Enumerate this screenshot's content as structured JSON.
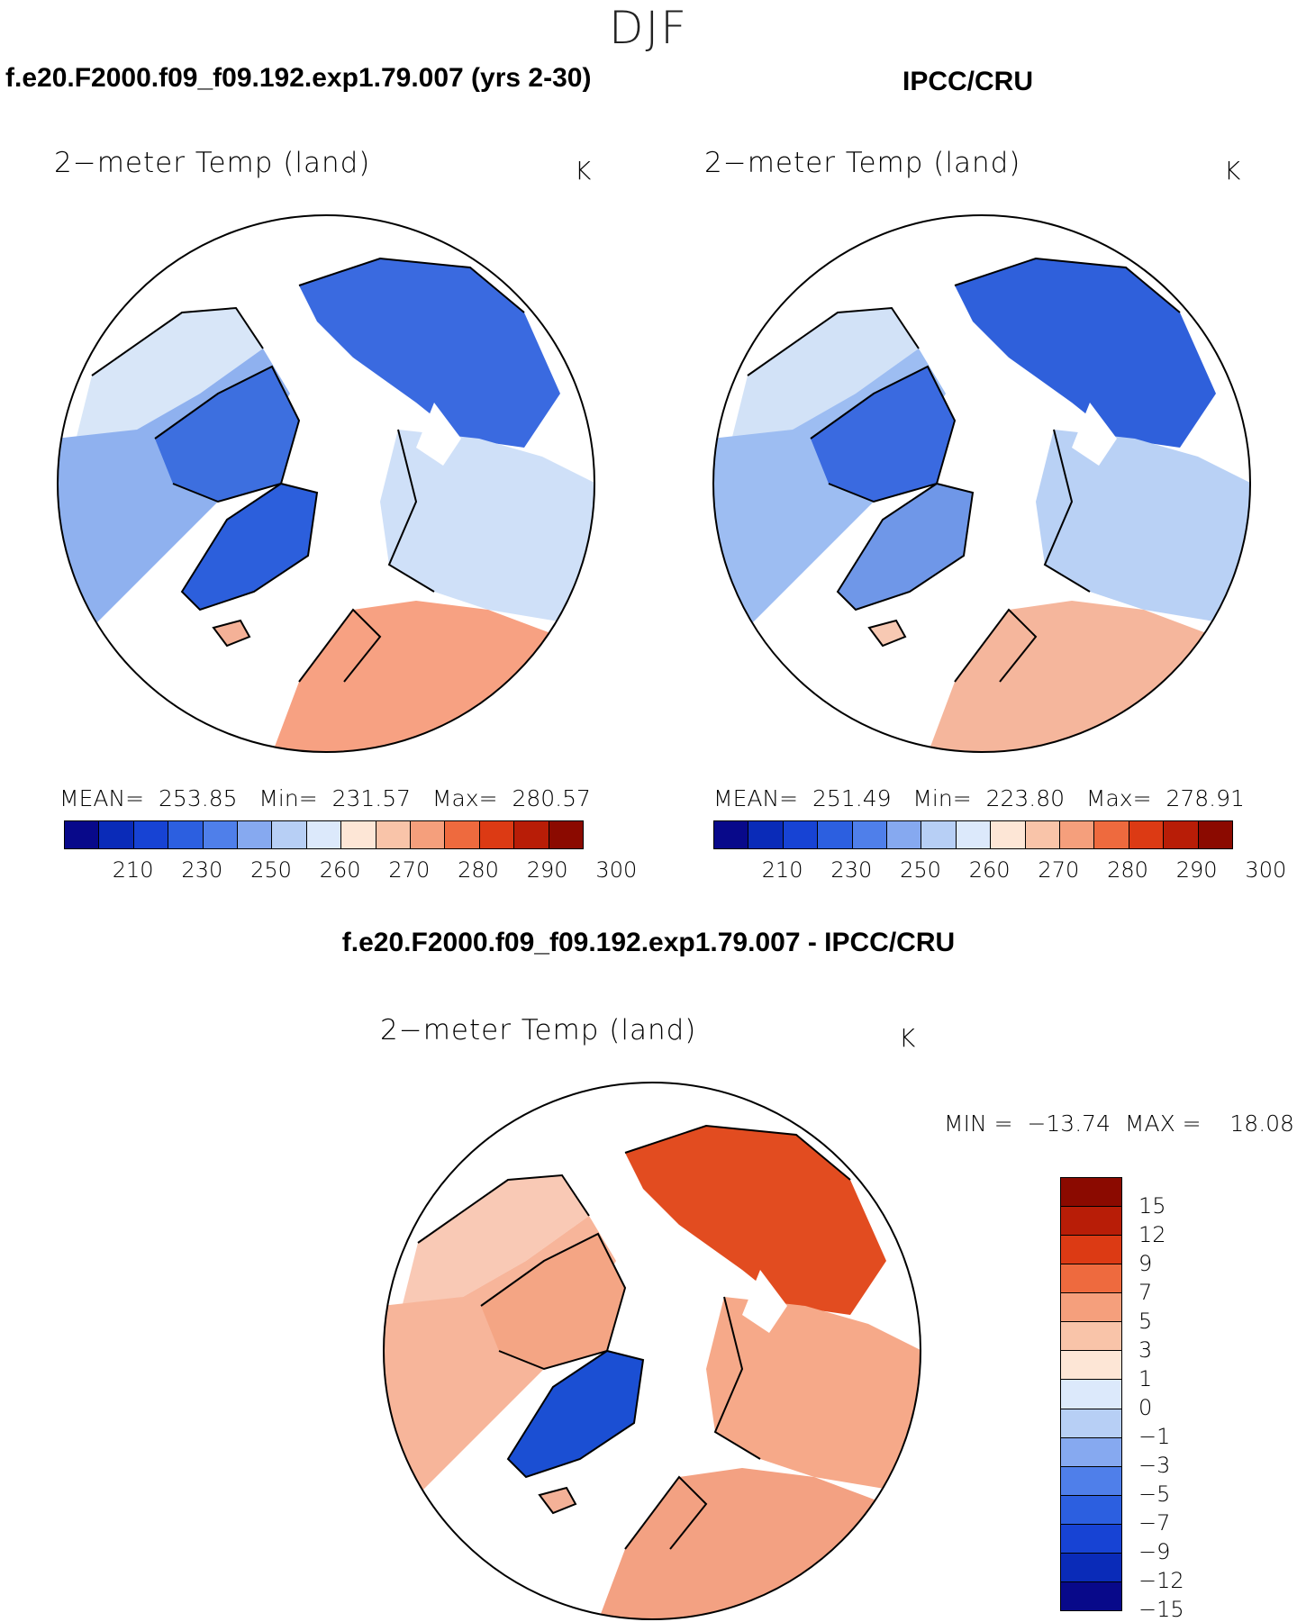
{
  "season": "DJF",
  "panels": {
    "model": {
      "title": "f.e20.F2000.f09_f09.192.exp1.79.007 (yrs 2-30)",
      "variable": "2−meter Temp (land)",
      "units": "K",
      "stats": {
        "mean_label": "MEAN=",
        "mean": "253.85",
        "min_label": "Min=",
        "min": "231.57",
        "max_label": "Max=",
        "max": "280.57"
      },
      "land_colors": {
        "north_america": "#8fb1ef",
        "canada_arctic": "#3d6fdf",
        "greenland": "#2c5fdc",
        "siberia": "#3a6ae0",
        "east_europe": "#cfe0f8",
        "europe": "#f7a182",
        "iceland": "#f4b197",
        "alaska": "#d8e6f8"
      }
    },
    "obs": {
      "title": "IPCC/CRU",
      "variable": "2−meter Temp (land)",
      "units": "K",
      "stats": {
        "mean_label": "MEAN=",
        "mean": "251.49",
        "min_label": "Min=",
        "min": "223.80",
        "max_label": "Max=",
        "max": "278.91"
      },
      "land_colors": {
        "north_america": "#9dbdf2",
        "canada_arctic": "#3a6ae0",
        "greenland": "#6f97e8",
        "siberia": "#2f60db",
        "east_europe": "#b9d1f5",
        "europe": "#f5b69c",
        "iceland": "#f7c9b3",
        "alaska": "#d2e2f7"
      }
    },
    "diff": {
      "title": "f.e20.F2000.f09_f09.192.exp1.79.007 - IPCC/CRU",
      "variable": "2−meter Temp (land)",
      "units": "K",
      "minmax": {
        "min_label": "MIN =",
        "min": "−13.74",
        "max_label": "MAX =",
        "max": "18.08"
      },
      "land_colors": {
        "north_america": "#f7b59a",
        "canada_arctic": "#f4a584",
        "greenland": "#1b4fd3",
        "siberia": "#e24c20",
        "east_europe": "#f6a989",
        "europe": "#f3a182",
        "iceland": "#f4b197",
        "alaska": "#f9c9b5"
      }
    }
  },
  "colorbar_abs": {
    "ticks": [
      "210",
      "230",
      "250",
      "260",
      "270",
      "280",
      "290",
      "300"
    ],
    "colors": [
      "#08098a",
      "#0a2bb8",
      "#1743d4",
      "#2c5fe0",
      "#4f7fea",
      "#86a9f0",
      "#b7cff5",
      "#dce9fb",
      "#fde6d6",
      "#f9c4a9",
      "#f59f7c",
      "#ee6a3e",
      "#dc3a14",
      "#b81d07",
      "#8b0a00"
    ]
  },
  "colorbar_diff": {
    "ticks": [
      "15",
      "12",
      "9",
      "7",
      "5",
      "3",
      "1",
      "0",
      "−1",
      "−3",
      "−5",
      "−7",
      "−9",
      "−12",
      "−15"
    ],
    "colors": [
      "#8b0a00",
      "#b81d07",
      "#dc3a14",
      "#ee6a3e",
      "#f59f7c",
      "#f9c4a9",
      "#fde6d6",
      "#dce9fb",
      "#b7cff5",
      "#86a9f0",
      "#4f7fea",
      "#2c5fe0",
      "#1743d4",
      "#0a2bb8",
      "#08098a"
    ]
  }
}
